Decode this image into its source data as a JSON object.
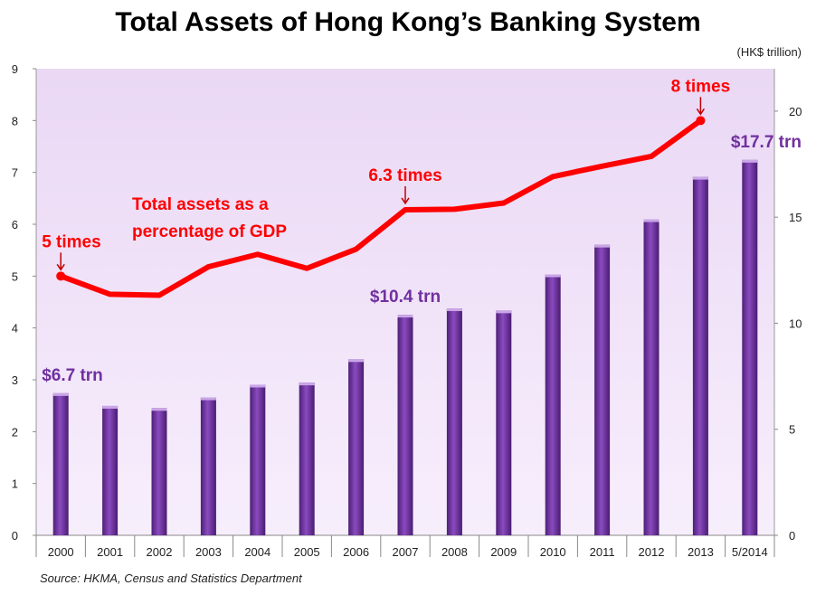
{
  "chart_data": {
    "type": "bar+line",
    "title": "Total Assets of Hong Kong’s Banking System",
    "unit_label": "(HK$ trillion)",
    "categories": [
      "2000",
      "2001",
      "2002",
      "2003",
      "2004",
      "2005",
      "2006",
      "2007",
      "2008",
      "2009",
      "2010",
      "2011",
      "2012",
      "2013",
      "5/2014"
    ],
    "series": [
      {
        "name": "Total assets (HK$ trillion)",
        "type": "bar",
        "axis": "right",
        "color": "#7030a0",
        "values": [
          6.7,
          6.1,
          6.0,
          6.5,
          7.1,
          7.2,
          8.3,
          10.4,
          10.7,
          10.6,
          12.3,
          13.7,
          14.9,
          16.9,
          17.7
        ]
      },
      {
        "name": "Total assets as a percentage of GDP",
        "type": "line",
        "axis": "left",
        "color": "#ff0000",
        "values": [
          5.0,
          4.65,
          4.63,
          5.18,
          5.42,
          5.15,
          5.52,
          6.28,
          6.29,
          6.41,
          6.92,
          7.12,
          7.31,
          8.0,
          null
        ]
      }
    ],
    "left_axis": {
      "ylim": [
        0,
        9
      ],
      "ticks": [
        "0",
        "1",
        "2",
        "3",
        "4",
        "5",
        "6",
        "7",
        "8",
        "9"
      ]
    },
    "right_axis": {
      "ylim": [
        0,
        22
      ],
      "ticks": [
        "0",
        "5",
        "10",
        "15",
        "20"
      ]
    },
    "annotations": {
      "line_label": [
        "Total assets as a",
        "percentage of GDP"
      ],
      "times": [
        {
          "text": "5 times",
          "index": 0
        },
        {
          "text": "6.3 times",
          "index": 7
        },
        {
          "text": "8 times",
          "index": 13
        }
      ],
      "bar_labels": [
        {
          "text": "$6.7 trn",
          "index": 0
        },
        {
          "text": "$10.4 trn",
          "index": 7
        },
        {
          "text": "$17.7 trn",
          "index": 14
        }
      ]
    },
    "source": "Source: HKMA, Census and Statistics Department"
  }
}
